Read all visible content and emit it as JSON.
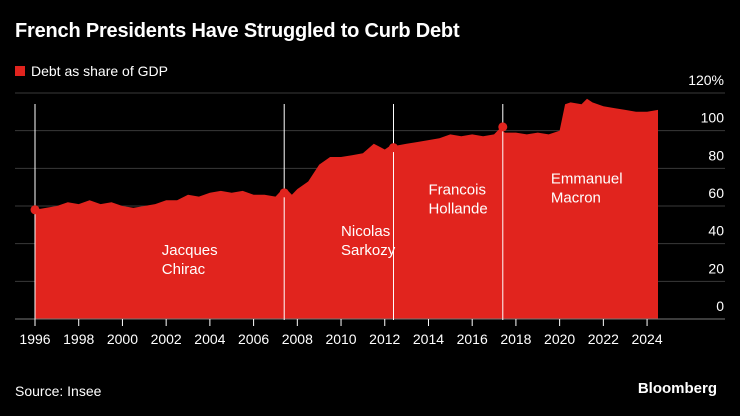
{
  "header": {
    "title": "French Presidents Have Struggled to Curb Debt"
  },
  "legend": {
    "label": "Debt as share of GDP",
    "color": "#e1241e"
  },
  "footer": {
    "source": "Source: Insee",
    "brand": "Bloomberg"
  },
  "chart_data": {
    "type": "area",
    "title": "French Presidents Have Struggled to Curb Debt",
    "xlabel": "",
    "ylabel": "",
    "xlim": [
      1996,
      2024.5
    ],
    "ylim": [
      0,
      120
    ],
    "grid": true,
    "legend_position": "top-left",
    "x_ticks": [
      "1996",
      "1998",
      "2000",
      "2002",
      "2004",
      "2006",
      "2008",
      "2010",
      "2012",
      "2014",
      "2016",
      "2018",
      "2020",
      "2022",
      "2024"
    ],
    "y_ticks": [
      {
        "value": 120,
        "label": "120%"
      },
      {
        "value": 100,
        "label": "100"
      },
      {
        "value": 80,
        "label": "80"
      },
      {
        "value": 60,
        "label": "60"
      },
      {
        "value": 40,
        "label": "40"
      },
      {
        "value": 20,
        "label": "20"
      },
      {
        "value": 0,
        "label": "0"
      }
    ],
    "series": [
      {
        "name": "Debt as share of GDP",
        "color": "#e1241e",
        "x": [
          1996,
          1996.5,
          1997,
          1997.5,
          1998,
          1998.5,
          1999,
          1999.5,
          2000,
          2000.5,
          2001,
          2001.5,
          2002,
          2002.5,
          2003,
          2003.5,
          2004,
          2004.5,
          2005,
          2005.5,
          2006,
          2006.5,
          2007,
          2007.25,
          2007.5,
          2007.75,
          2008,
          2008.5,
          2009,
          2009.5,
          2010,
          2010.5,
          2011,
          2011.5,
          2012,
          2012.25,
          2012.5,
          2013,
          2013.5,
          2014,
          2014.5,
          2015,
          2015.5,
          2016,
          2016.5,
          2017,
          2017.25,
          2017.5,
          2018,
          2018.5,
          2019,
          2019.5,
          2020,
          2020.25,
          2020.5,
          2021,
          2021.25,
          2021.5,
          2022,
          2022.5,
          2023,
          2023.5,
          2024,
          2024.5
        ],
        "y": [
          58,
          59,
          60,
          62,
          61,
          63,
          61,
          62,
          60,
          59,
          60,
          61,
          63,
          63,
          66,
          65,
          67,
          68,
          67,
          68,
          66,
          66,
          65,
          68,
          69,
          66,
          69,
          73,
          82,
          86,
          86,
          87,
          88,
          93,
          90,
          92,
          92,
          93,
          94,
          95,
          96,
          98,
          97,
          98,
          97,
          98,
          101,
          99,
          99,
          98,
          99,
          98,
          100,
          114,
          115,
          114,
          117,
          115,
          113,
          112,
          111,
          110,
          110,
          111
        ]
      }
    ],
    "president_markers": [
      {
        "x": 1996,
        "value": 58
      },
      {
        "x": 2007.4,
        "value": 67
      },
      {
        "x": 2012.4,
        "value": 91
      },
      {
        "x": 2017.4,
        "value": 102
      }
    ],
    "annotations": [
      {
        "lines": [
          "Jacques",
          "Chirac"
        ],
        "x": 2001.8,
        "y": 34
      },
      {
        "lines": [
          "Nicolas",
          "Sarkozy"
        ],
        "x": 2010,
        "y": 44
      },
      {
        "lines": [
          "Francois",
          "Hollande"
        ],
        "x": 2014,
        "y": 66
      },
      {
        "lines": [
          "Emmanuel",
          "Macron"
        ],
        "x": 2019.6,
        "y": 72
      }
    ]
  }
}
